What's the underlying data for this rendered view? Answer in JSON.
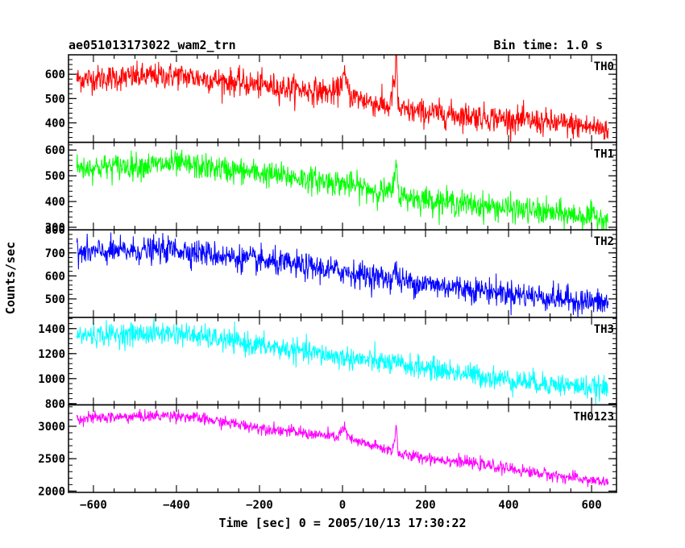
{
  "header": {
    "title": "ae051013173022_wam2_trn",
    "bin_time": "Bin time: 1.0 s"
  },
  "chart_data": {
    "type": "line",
    "title": "ae051013173022_wam2_trn",
    "subtitle": "Bin time: 1.0 s",
    "xlabel": "Time [sec] 0 = 2005/10/13 17:30:22",
    "ylabel": "Counts/sec",
    "xlim": [
      -660,
      660
    ],
    "x_ticks": [
      -600,
      -400,
      -200,
      0,
      200,
      400,
      600
    ],
    "x_tick_labels": [
      "−600",
      "−400",
      "−200",
      "0",
      "200",
      "400",
      "600"
    ],
    "x_range": [
      -640,
      640
    ],
    "grid": false,
    "panels": [
      {
        "name": "TH0",
        "color": "#ff0000",
        "ylim": [
          320,
          680
        ],
        "yticks": [
          400,
          500,
          600
        ],
        "y_tick_labels": [
          "400",
          "500",
          "600"
        ],
        "trend": {
          "x": [
            -640,
            -400,
            -200,
            0,
            120,
            140,
            300,
            500,
            640
          ],
          "y": [
            580,
            595,
            555,
            520,
            460,
            450,
            430,
            400,
            375
          ]
        },
        "noise": 27,
        "features": [
          {
            "x": 3,
            "height": 70,
            "width": 7
          },
          {
            "x": 125,
            "height": 110,
            "width": 5
          },
          {
            "x": 130,
            "height": 160,
            "width": 1.5
          }
        ]
      },
      {
        "name": "TH1",
        "color": "#00ff00",
        "ylim": [
          290,
          630
        ],
        "yticks": [
          300,
          400,
          500,
          600
        ],
        "y_tick_labels": [
          "300",
          "400",
          "500",
          "600"
        ],
        "trend": {
          "x": [
            -640,
            -400,
            -200,
            0,
            120,
            140,
            300,
            500,
            640
          ],
          "y": [
            530,
            545,
            510,
            470,
            430,
            420,
            390,
            355,
            335
          ]
        },
        "noise": 25,
        "features": [
          {
            "x": 127,
            "height": 50,
            "width": 5
          },
          {
            "x": 130,
            "height": 130,
            "width": 1.5
          }
        ]
      },
      {
        "name": "TH2",
        "color": "#0000ff",
        "ylim": [
          420,
          800
        ],
        "yticks": [
          500,
          600,
          700,
          800
        ],
        "y_tick_labels": [
          "500",
          "600",
          "700",
          "800"
        ],
        "trend": {
          "x": [
            -640,
            -400,
            -200,
            0,
            150,
            300,
            500,
            640
          ],
          "y": [
            700,
            715,
            665,
            620,
            575,
            545,
            505,
            480
          ]
        },
        "noise": 28,
        "features": [
          {
            "x": 127,
            "height": 45,
            "width": 4
          }
        ]
      },
      {
        "name": "TH3",
        "color": "#00ffff",
        "ylim": [
          790,
          1490
        ],
        "yticks": [
          800,
          1000,
          1200,
          1400
        ],
        "y_tick_labels": [
          "800",
          "1000",
          "1200",
          "1400"
        ],
        "trend": {
          "x": [
            -640,
            -400,
            -200,
            0,
            200,
            400,
            640
          ],
          "y": [
            1345,
            1365,
            1265,
            1170,
            1085,
            990,
            915
          ]
        },
        "noise": 45,
        "features": []
      },
      {
        "name": "TH0123",
        "color": "#ff00ff",
        "ylim": [
          1980,
          3330
        ],
        "yticks": [
          2000,
          2500,
          3000
        ],
        "y_tick_labels": [
          "2000",
          "2500",
          "3000"
        ],
        "trend": {
          "x": [
            -640,
            -400,
            -200,
            0,
            120,
            140,
            300,
            500,
            640
          ],
          "y": [
            3120,
            3170,
            2980,
            2820,
            2620,
            2560,
            2440,
            2250,
            2130
          ]
        },
        "noise": 45,
        "features": [
          {
            "x": 3,
            "height": 150,
            "width": 7
          },
          {
            "x": 127,
            "height": 200,
            "width": 4
          },
          {
            "x": 130,
            "height": 250,
            "width": 1.5
          }
        ]
      }
    ]
  }
}
